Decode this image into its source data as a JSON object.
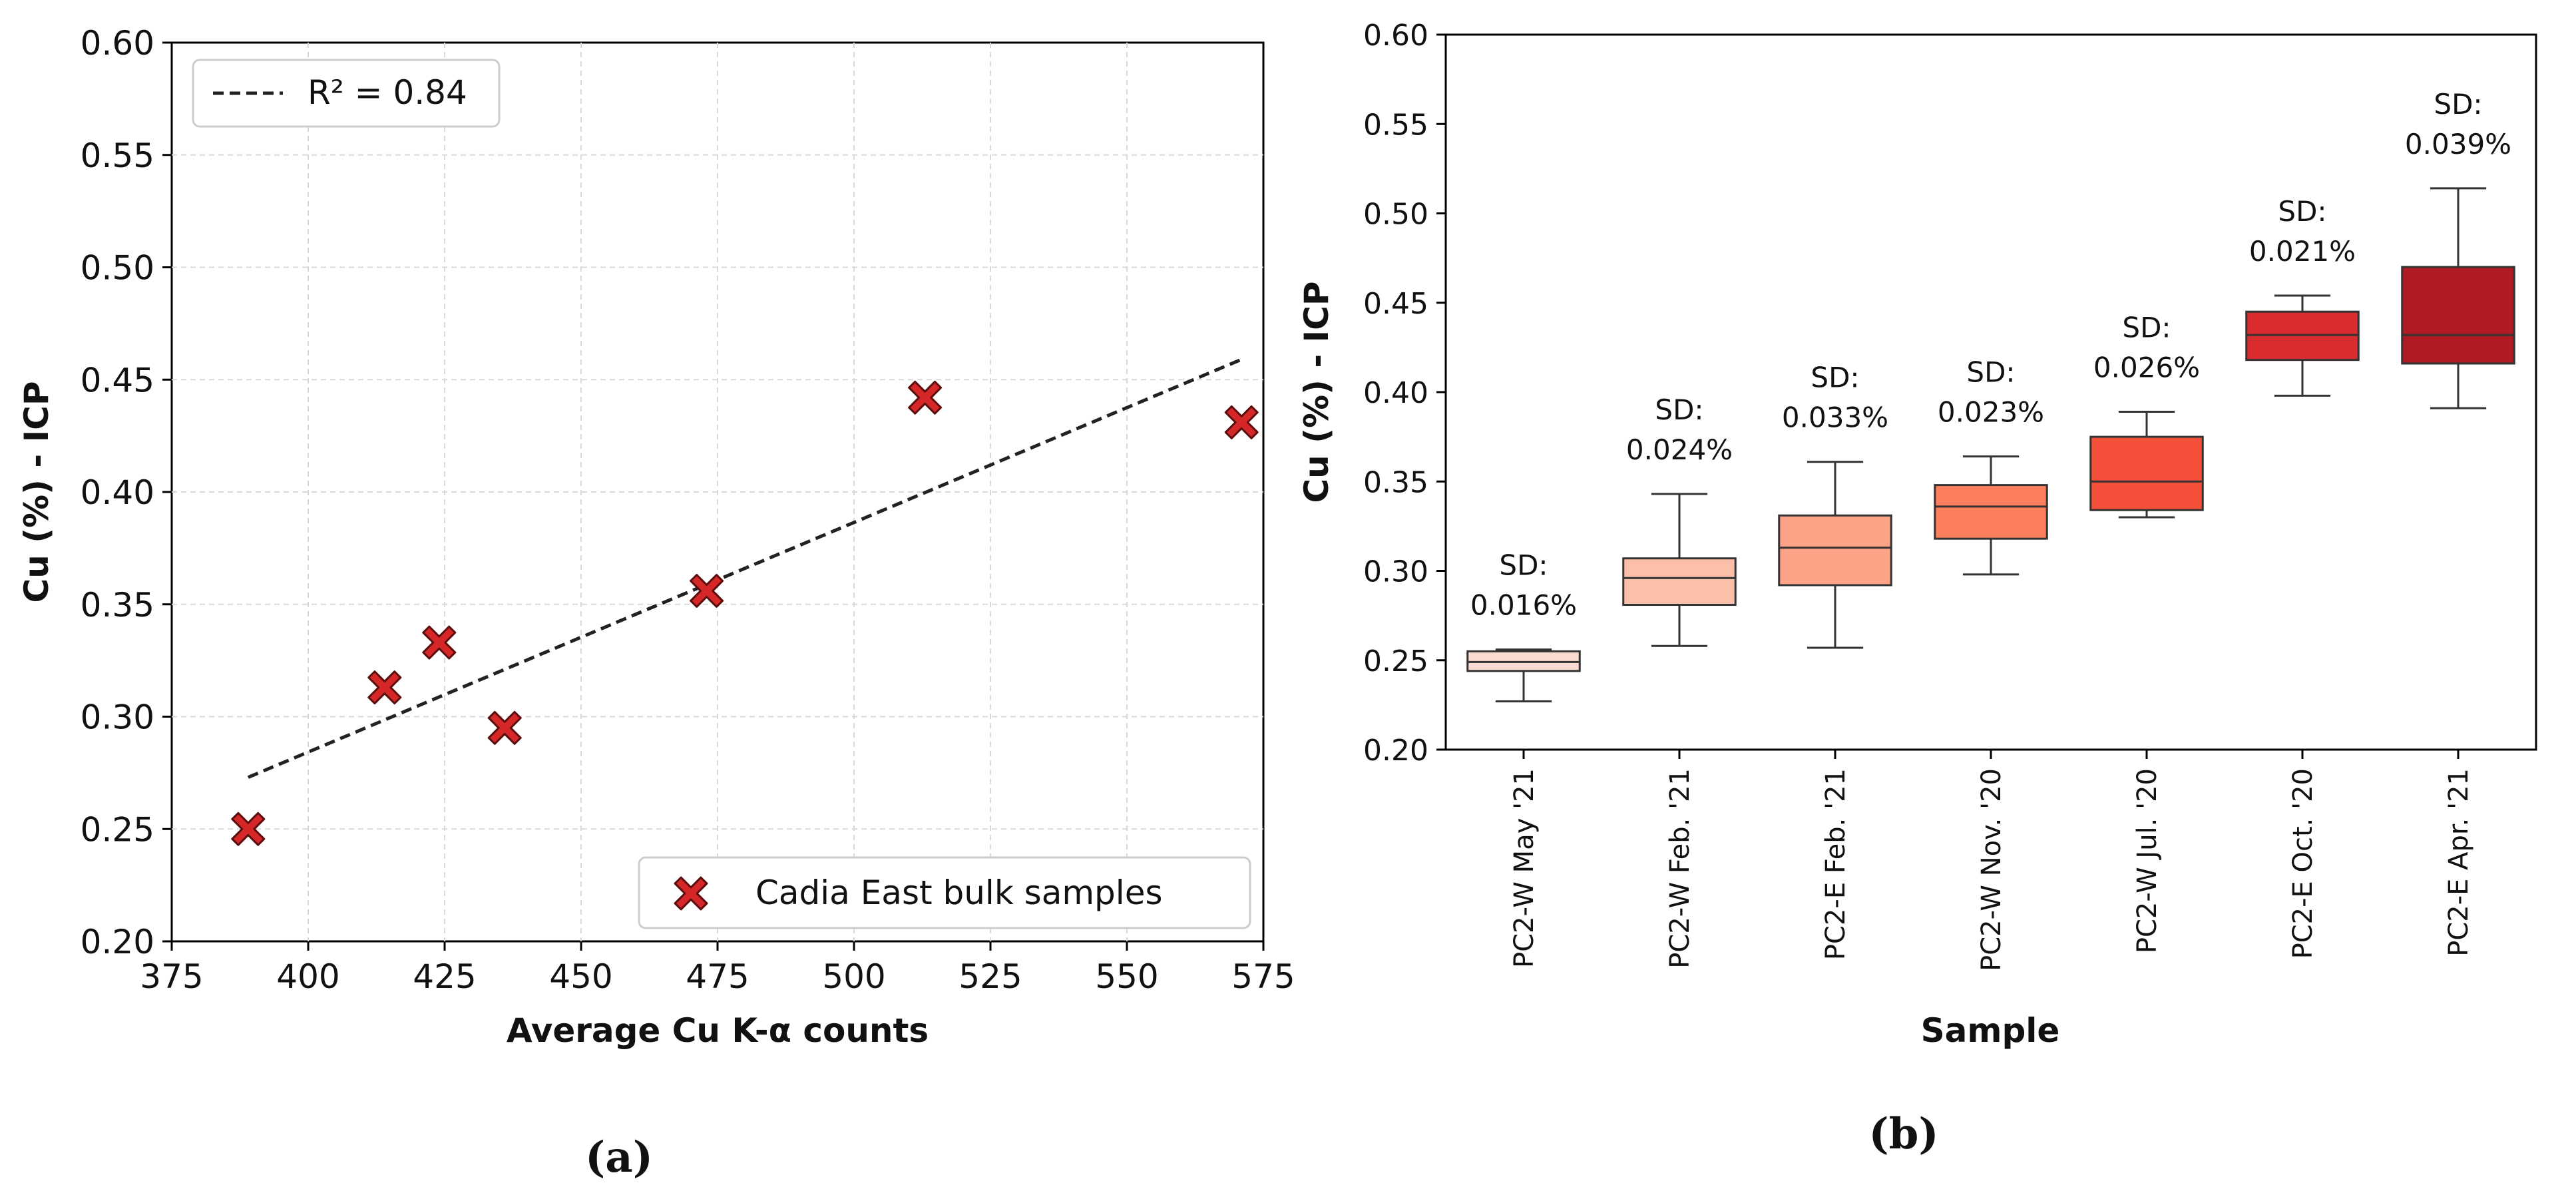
{
  "chart_data": [
    {
      "panel": "(a)",
      "type": "scatter",
      "xlabel": "Average Cu K-α counts",
      "ylabel": "Cu (%) - ICP",
      "xlim": [
        375,
        575
      ],
      "ylim": [
        0.2,
        0.6
      ],
      "xticks": [
        375,
        400,
        425,
        450,
        475,
        500,
        525,
        550,
        575
      ],
      "yticks": [
        0.2,
        0.25,
        0.3,
        0.35,
        0.4,
        0.45,
        0.5,
        0.55,
        0.6
      ],
      "xtick_labels": [
        "375",
        "400",
        "425",
        "450",
        "475",
        "500",
        "525",
        "550",
        "575"
      ],
      "ytick_labels": [
        "0.20",
        "0.25",
        "0.30",
        "0.35",
        "0.40",
        "0.45",
        "0.50",
        "0.55",
        "0.60"
      ],
      "grid": true,
      "series": [
        {
          "name": "Cadia East bulk samples",
          "marker": "x-filled",
          "color": "#d62728",
          "points": [
            {
              "x": 389,
              "y": 0.25
            },
            {
              "x": 414,
              "y": 0.313
            },
            {
              "x": 424,
              "y": 0.333
            },
            {
              "x": 436,
              "y": 0.295
            },
            {
              "x": 473,
              "y": 0.356
            },
            {
              "x": 513,
              "y": 0.442
            },
            {
              "x": 571,
              "y": 0.431
            }
          ]
        }
      ],
      "fit_line": {
        "name": "R² = 0.84",
        "style": "dashed",
        "color": "#222222",
        "x": [
          389,
          571
        ],
        "y": [
          0.273,
          0.459
        ]
      },
      "legends": {
        "fit": {
          "label": "R² = 0.84",
          "position": "top-left"
        },
        "samples": {
          "label": "Cadia East bulk samples",
          "position": "bottom-right"
        }
      }
    },
    {
      "panel": "(b)",
      "type": "box",
      "xlabel": "Sample",
      "ylabel": "Cu (%) - ICP",
      "ylim": [
        0.2,
        0.6
      ],
      "yticks": [
        0.2,
        0.25,
        0.3,
        0.35,
        0.4,
        0.45,
        0.5,
        0.55,
        0.6
      ],
      "ytick_labels": [
        "0.20",
        "0.25",
        "0.30",
        "0.35",
        "0.40",
        "0.45",
        "0.50",
        "0.55",
        "0.60"
      ],
      "grid": false,
      "boxes": [
        {
          "category": "PC2-W May '21",
          "min": 0.227,
          "q1": 0.244,
          "median": 0.249,
          "q3": 0.255,
          "max": 0.256,
          "sd_label": "SD:",
          "sd_value": "0.016%",
          "color": "#fcdcd0"
        },
        {
          "category": "PC2-W Feb. '21",
          "min": 0.258,
          "q1": 0.281,
          "median": 0.296,
          "q3": 0.307,
          "max": 0.343,
          "sd_label": "SD:",
          "sd_value": "0.024%",
          "color": "#fcbfaa"
        },
        {
          "category": "PC2-E Feb. '21",
          "min": 0.257,
          "q1": 0.292,
          "median": 0.313,
          "q3": 0.331,
          "max": 0.361,
          "sd_label": "SD:",
          "sd_value": "0.033%",
          "color": "#fca286"
        },
        {
          "category": "PC2-W Nov. '20",
          "min": 0.298,
          "q1": 0.318,
          "median": 0.336,
          "q3": 0.348,
          "max": 0.364,
          "sd_label": "SD:",
          "sd_value": "0.023%",
          "color": "#fb7e5d"
        },
        {
          "category": "PC2-W Jul. '20",
          "min": 0.33,
          "q1": 0.334,
          "median": 0.35,
          "q3": 0.375,
          "max": 0.389,
          "sd_label": "SD:",
          "sd_value": "0.026%",
          "color": "#f4503a"
        },
        {
          "category": "PC2-E Oct. '20",
          "min": 0.398,
          "q1": 0.418,
          "median": 0.432,
          "q3": 0.445,
          "max": 0.454,
          "sd_label": "SD:",
          "sd_value": "0.021%",
          "color": "#da2c2e"
        },
        {
          "category": "PC2-E Apr. '21",
          "min": 0.391,
          "q1": 0.416,
          "median": 0.432,
          "q3": 0.47,
          "max": 0.514,
          "sd_label": "SD:",
          "sd_value": "0.039%",
          "color": "#b01a22"
        }
      ]
    }
  ]
}
